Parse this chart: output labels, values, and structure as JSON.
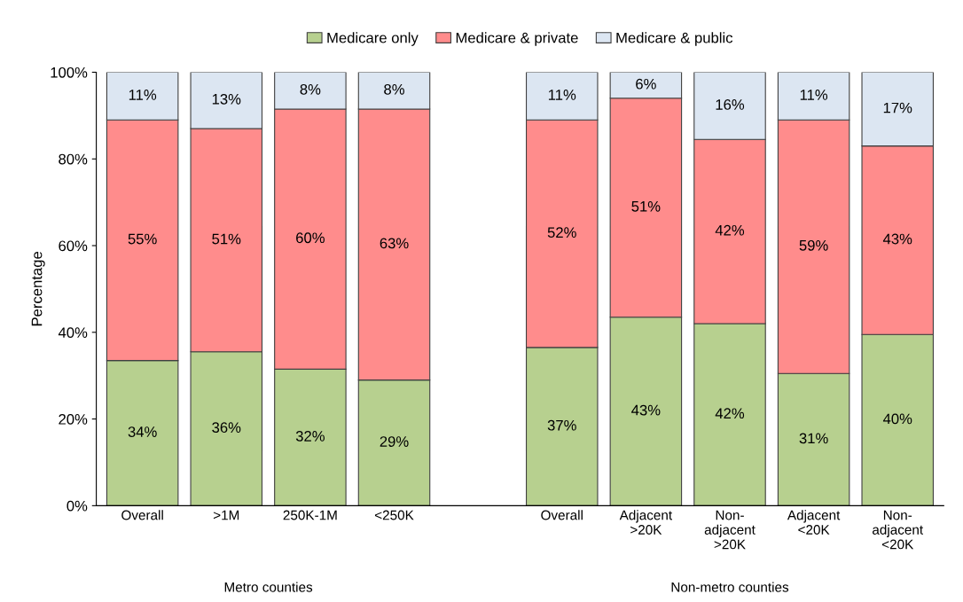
{
  "chart_data": {
    "type": "bar",
    "stacked": true,
    "ylabel": "Percentage",
    "categories": [
      "Overall",
      ">1M",
      "250K-1M",
      "<250K",
      null,
      "Overall",
      "Adjacent\n>20K",
      "Non-\nadjacent\n>20K",
      "Adjacent\n<20K",
      "Non-\nadjacent\n<20K"
    ],
    "series": [
      {
        "name": "Medicare only",
        "color": "#b7d08f",
        "values": [
          33.5,
          35.5,
          31.5,
          29,
          null,
          36.5,
          43.5,
          42,
          30.5,
          39.5
        ],
        "value_labels": [
          "34%",
          "36%",
          "32%",
          "29%",
          null,
          "37%",
          "43%",
          "42%",
          "31%",
          "40%"
        ]
      },
      {
        "name": "Medicare & private",
        "color": "#ff8c8c",
        "values": [
          55.5,
          51.5,
          60,
          62.5,
          null,
          52.5,
          50.5,
          42.5,
          58.5,
          43.5
        ],
        "value_labels": [
          "55%",
          "51%",
          "60%",
          "63%",
          null,
          "52%",
          "51%",
          "42%",
          "59%",
          "43%"
        ]
      },
      {
        "name": "Medicare & public",
        "color": "#dce6f2",
        "values": [
          11,
          13,
          8.5,
          8.5,
          null,
          11,
          6,
          15.5,
          11,
          17
        ],
        "value_labels": [
          "11%",
          "13%",
          "8%",
          "8%",
          null,
          "11%",
          "6%",
          "16%",
          "11%",
          "17%"
        ]
      }
    ],
    "ylim": [
      0,
      100
    ],
    "yticks": [
      {
        "value": 0,
        "label": "0%"
      },
      {
        "value": 20,
        "label": "20%"
      },
      {
        "value": 40,
        "label": "40%"
      },
      {
        "value": 60,
        "label": "60%"
      },
      {
        "value": 80,
        "label": "80%"
      },
      {
        "value": 100,
        "label": "100%"
      }
    ],
    "grid": false,
    "legend": "top",
    "annotations": [
      "Metro counties",
      "Non-metro counties"
    ]
  }
}
